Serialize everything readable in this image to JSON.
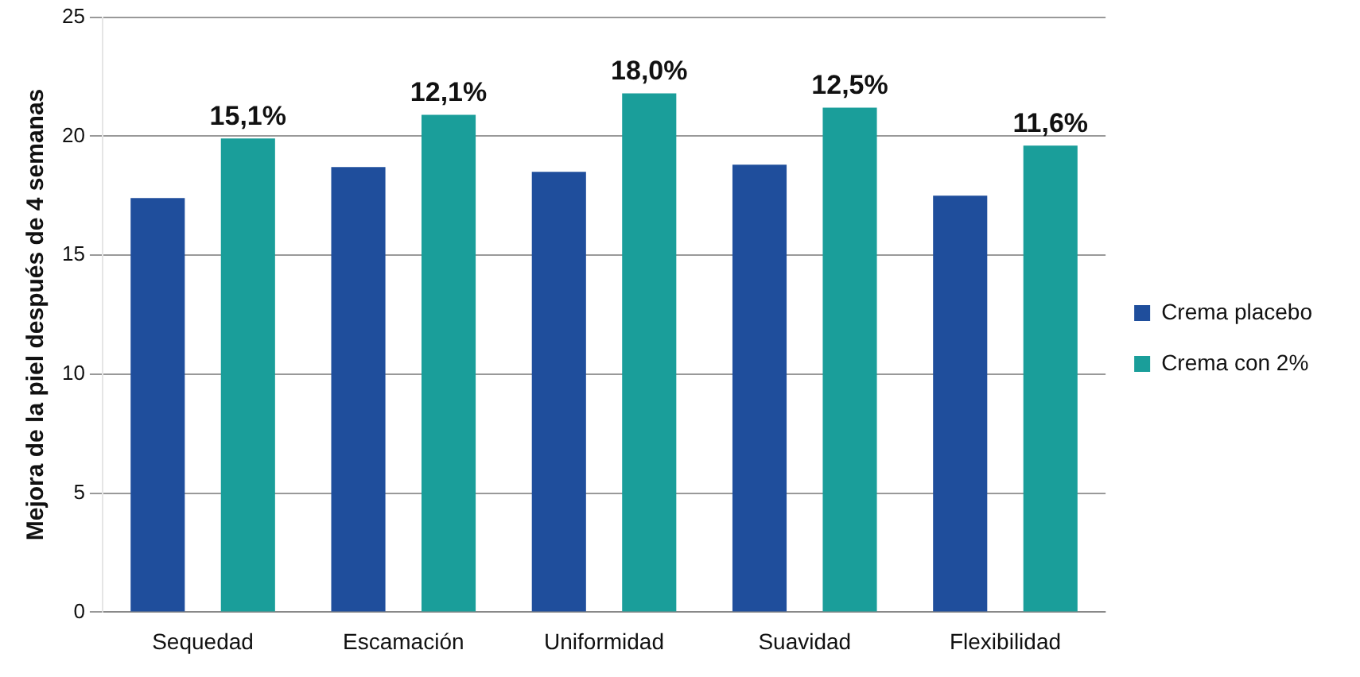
{
  "chart_data": {
    "type": "bar",
    "ylabel": "Mejora de la piel después de 4 semanas",
    "categories": [
      "Sequedad",
      "Escamación",
      "Uniformidad",
      "Suavidad",
      "Flexibilidad"
    ],
    "series": [
      {
        "name": "Crema placebo",
        "color": "#1f4e9c",
        "values": [
          17.4,
          18.7,
          18.5,
          18.8,
          17.5
        ]
      },
      {
        "name": "Crema con 2%",
        "color": "#1a9e9a",
        "values": [
          19.9,
          20.9,
          21.8,
          21.2,
          19.6
        ]
      }
    ],
    "ylim": [
      0,
      25
    ],
    "yticks": [
      0,
      5,
      10,
      15,
      20,
      25
    ],
    "grid": "y",
    "legend": "right",
    "annotations": [
      "15,1%",
      "12,1%",
      "18,0%",
      "12,5%",
      "11,6%"
    ]
  }
}
